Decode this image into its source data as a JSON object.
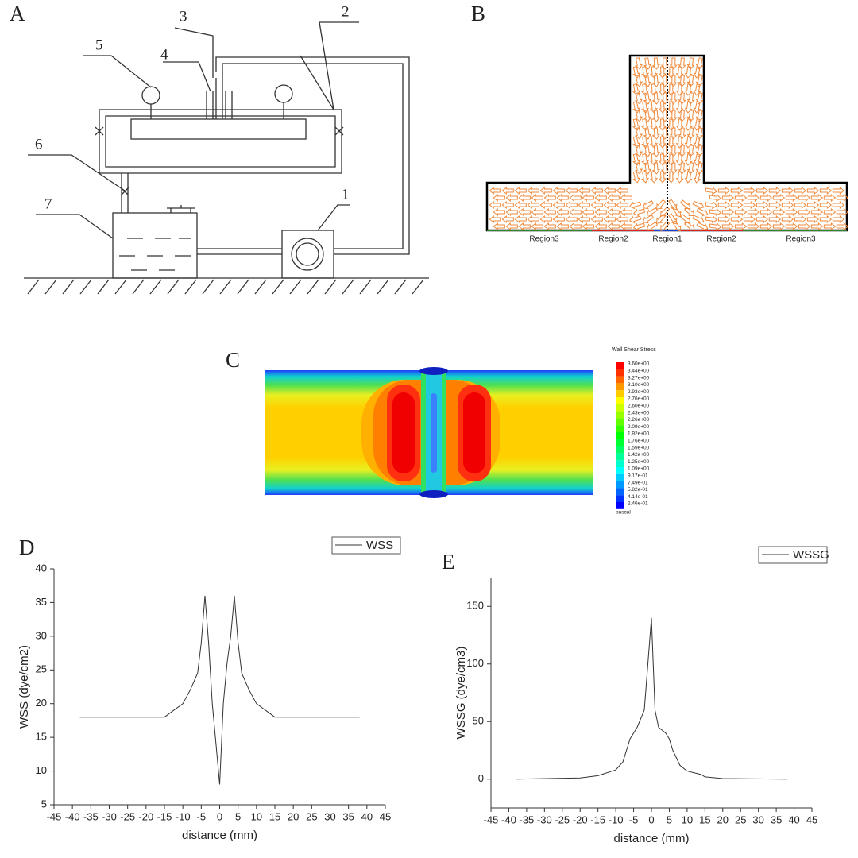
{
  "panel_labels": [
    "A",
    "B",
    "C",
    "D",
    "E"
  ],
  "diagram_a": {
    "labels": [
      "1",
      "2",
      "3",
      "4",
      "5",
      "6",
      "7"
    ]
  },
  "diagram_b": {
    "regions": [
      "Region3",
      "Region2",
      "Region1",
      "Region2",
      "Region3"
    ]
  },
  "contour_c": {
    "title": "Wall Shear Stress",
    "levels": [
      "3.60e+00",
      "3.44e+00",
      "3.27e+00",
      "3.10e+00",
      "2.93e+00",
      "2.76e+00",
      "2.60e+00",
      "2.43e+00",
      "2.26e+00",
      "2.09e+00",
      "1.92e+00",
      "1.76e+00",
      "1.59e+00",
      "1.42e+00",
      "1.25e+00",
      "1.09e+00",
      "9.17e-01",
      "7.49e-01",
      "5.82e-01",
      "4.14e-01",
      "2.46e-01"
    ],
    "unit": "pascal"
  },
  "chart_data": [
    {
      "type": "line",
      "x_label": "distance (mm)",
      "y_label": "WSS (dye/cm2)",
      "x": [
        -38,
        -15,
        -10,
        -8,
        -6,
        -5,
        -4,
        -3,
        -2,
        -1,
        0,
        1,
        2,
        3,
        4,
        5,
        6,
        8,
        10,
        15,
        38
      ],
      "series": [
        {
          "name": "WSS",
          "color": "#333333",
          "values": [
            18,
            18,
            20,
            22,
            24.5,
            29,
            36,
            29,
            20,
            14,
            8,
            20,
            26,
            30,
            36,
            29,
            24.5,
            22,
            20,
            18,
            18
          ]
        }
      ],
      "xlim": [
        -45,
        45
      ],
      "xticks": [
        -45,
        -40,
        -35,
        -30,
        -25,
        -20,
        -15,
        -10,
        -5,
        0,
        5,
        10,
        15,
        20,
        25,
        30,
        35,
        40,
        45
      ],
      "ylim": [
        5,
        40
      ],
      "yticks": [
        5,
        10,
        15,
        20,
        25,
        30,
        35,
        40
      ],
      "legend": "upper right"
    },
    {
      "type": "line",
      "x_label": "distance (mm)",
      "y_label": "WSSG (dye/cm3)",
      "x": [
        -38,
        -20,
        -15,
        -10,
        -8,
        -6,
        -4,
        -2,
        -1,
        0,
        1,
        2,
        4,
        5,
        6,
        8,
        10,
        14,
        15,
        20,
        38
      ],
      "series": [
        {
          "name": "WSSG",
          "color": "#333333",
          "values": [
            0,
            1,
            3,
            8,
            15,
            35,
            45,
            60,
            100,
            140,
            60,
            45,
            40,
            35,
            25,
            12,
            7,
            4,
            2,
            0.5,
            0
          ]
        }
      ],
      "xlim": [
        -45,
        45
      ],
      "xticks": [
        -45,
        -40,
        -35,
        -30,
        -25,
        -20,
        -15,
        -10,
        -5,
        0,
        5,
        10,
        15,
        20,
        25,
        30,
        35,
        40,
        45
      ],
      "ylim": [
        -25,
        175
      ],
      "yticks": [
        0,
        50,
        100,
        150
      ],
      "legend": "upper right"
    }
  ]
}
